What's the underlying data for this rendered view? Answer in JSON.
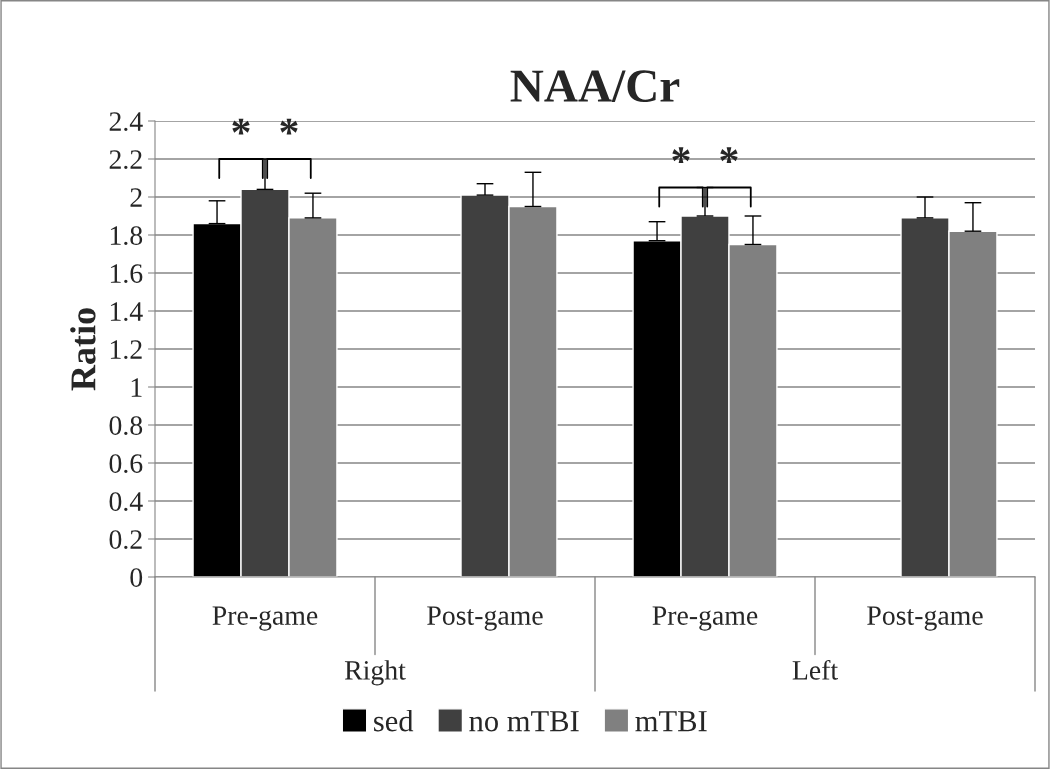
{
  "chart_data": {
    "type": "bar",
    "title": "NAA/Cr",
    "ylabel": "Ratio",
    "categories": [
      "Pre-game",
      "Post-game",
      "Pre-game",
      "Post-game"
    ],
    "series": [
      {
        "name": "sed",
        "color": "#000000",
        "values": [
          1.86,
          null,
          1.77,
          null
        ],
        "errors": [
          [
            1.86,
            1.98
          ],
          null,
          [
            1.77,
            1.87
          ],
          null
        ]
      },
      {
        "name": "no mTBI",
        "color": "#404040",
        "values": [
          2.04,
          2.01,
          1.9,
          1.89
        ],
        "errors": [
          [
            2.04,
            2.2
          ],
          [
            2.01,
            2.07
          ],
          [
            1.9,
            2.05
          ],
          [
            1.89,
            2.0
          ]
        ]
      },
      {
        "name": "mTBI",
        "color": "#808080",
        "values": [
          1.89,
          1.95,
          1.75,
          1.82
        ],
        "errors": [
          [
            1.89,
            2.02
          ],
          [
            1.95,
            2.13
          ],
          [
            1.75,
            1.9
          ],
          [
            1.82,
            1.97
          ]
        ]
      }
    ],
    "annotations": [
      "*",
      "*",
      "*",
      "*",
      "Right",
      "Left"
    ],
    "ylim": [
      0,
      2.4
    ],
    "yticks": [
      0,
      0.2,
      0.4,
      0.6,
      0.8,
      1,
      1.2,
      1.4,
      1.6,
      1.8,
      2,
      2.2,
      2.4
    ],
    "grid": "y",
    "legend": "bottom"
  }
}
